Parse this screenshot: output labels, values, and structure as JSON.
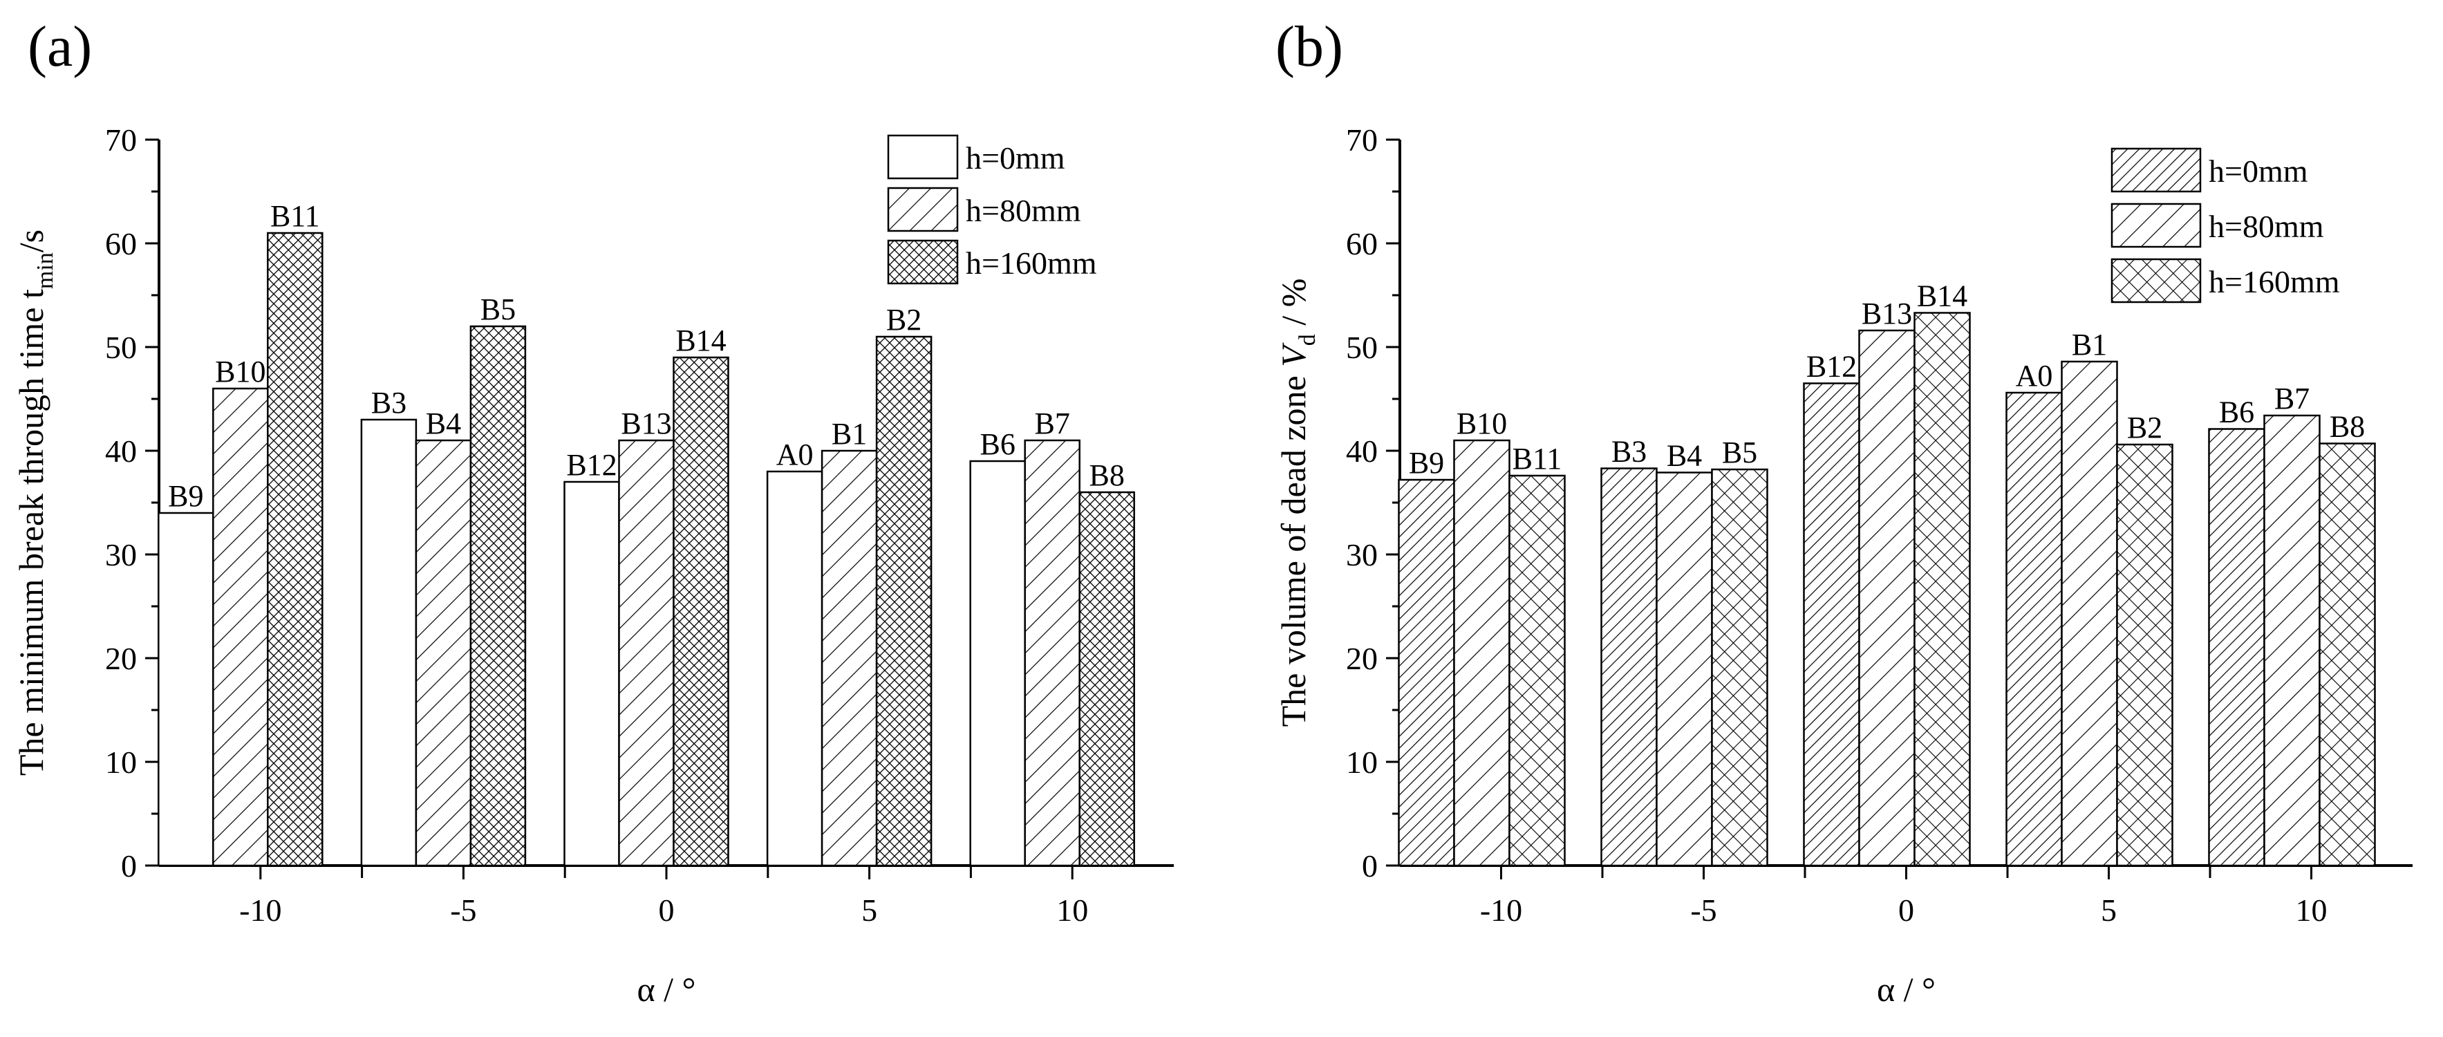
{
  "chart_data": [
    {
      "panel_label": "(a)",
      "type": "bar",
      "categories": [
        "-10",
        "-5",
        "0",
        "5",
        "10"
      ],
      "series": [
        {
          "name": "h=0mm",
          "pattern": "none",
          "values": [
            34,
            43,
            37,
            38,
            39
          ],
          "labels": [
            "B9",
            "B3",
            "B12",
            "A0",
            "B6"
          ]
        },
        {
          "name": "h=80mm",
          "pattern": "hatch",
          "values": [
            46,
            41,
            41,
            40,
            41
          ],
          "labels": [
            "B10",
            "B4",
            "B13",
            "B1",
            "B7"
          ]
        },
        {
          "name": "h=160mm",
          "pattern": "cross-dense",
          "values": [
            61,
            52,
            49,
            51,
            36
          ],
          "labels": [
            "B11",
            "B5",
            "B14",
            "B2",
            "B8"
          ]
        }
      ],
      "xlabel": "α / °",
      "ylabel_main": "The minimum break through time t",
      "ylabel_sub": "min",
      "ylabel_unit": "/s",
      "ylim": [
        0,
        70
      ],
      "yticks": [
        0,
        10,
        20,
        30,
        40,
        50,
        60,
        70
      ],
      "legend_position": "top-right"
    },
    {
      "panel_label": "(b)",
      "type": "bar",
      "categories": [
        "-10",
        "-5",
        "0",
        "5",
        "10"
      ],
      "series": [
        {
          "name": "h=0mm",
          "pattern": "hatch-dense",
          "values": [
            37.2,
            38.3,
            46.5,
            45.6,
            42.1
          ],
          "labels": [
            "B9",
            "B3",
            "B12",
            "A0",
            "B6"
          ]
        },
        {
          "name": "h=80mm",
          "pattern": "hatch",
          "values": [
            41.0,
            37.9,
            51.6,
            48.6,
            43.4
          ],
          "labels": [
            "B10",
            "B4",
            "B13",
            "B1",
            "B7"
          ]
        },
        {
          "name": "h=160mm",
          "pattern": "cross",
          "values": [
            37.6,
            38.2,
            53.3,
            40.6,
            40.7
          ],
          "labels": [
            "B11",
            "B5",
            "B14",
            "B2",
            "B8"
          ]
        }
      ],
      "xlabel": "α / °",
      "ylabel_main": "The volume of dead zone ",
      "ylabel_var": "V",
      "ylabel_sub": "d",
      "ylabel_unit": " / %",
      "ylim": [
        0,
        70
      ],
      "yticks": [
        0,
        10,
        20,
        30,
        40,
        50,
        60,
        70
      ],
      "legend_position": "top-right"
    }
  ]
}
